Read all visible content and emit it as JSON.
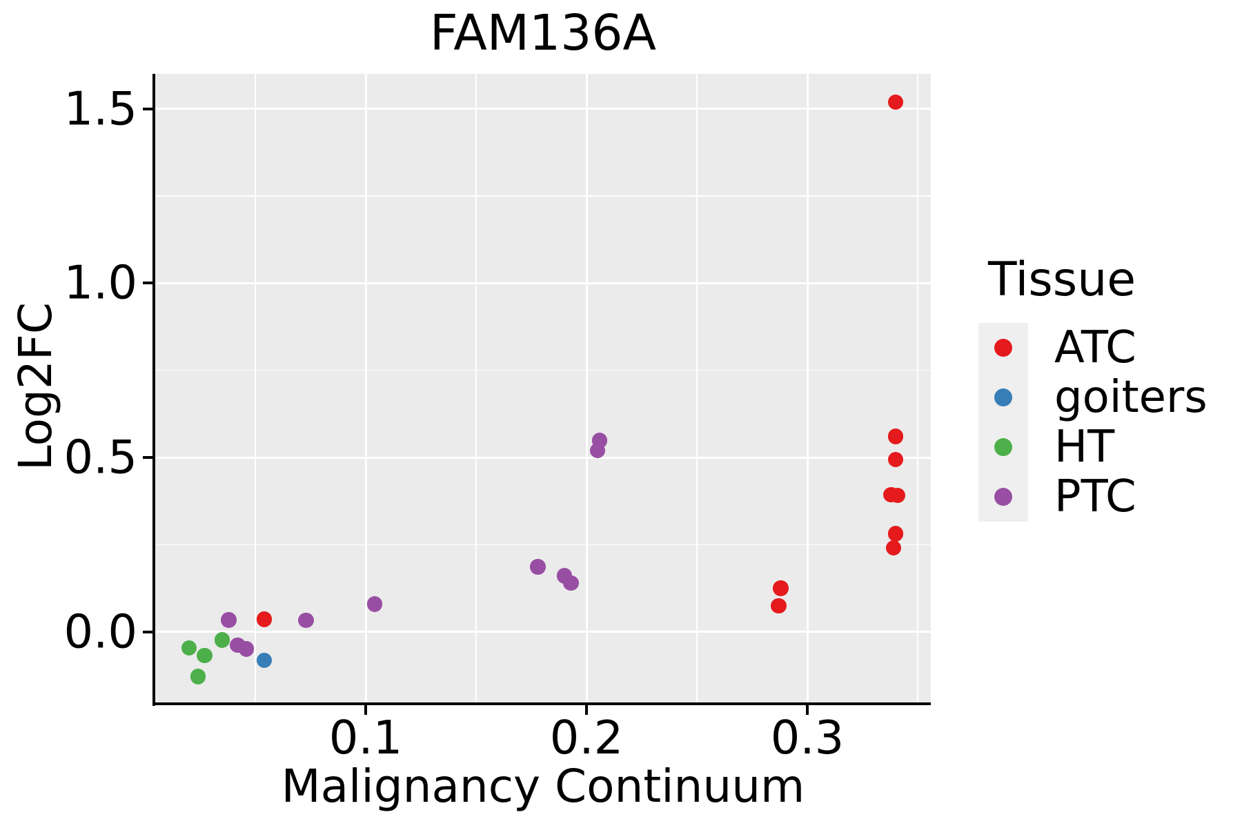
{
  "title": "FAM136A",
  "chart_data": {
    "type": "scatter",
    "title": "FAM136A",
    "xlabel": "Malignancy Continuum",
    "ylabel": "Log2FC",
    "xlim": [
      0.005,
      0.356
    ],
    "ylim": [
      -0.204,
      1.601
    ],
    "grid": "on",
    "x_ticks": [
      {
        "v": 0.1,
        "label": "0.1"
      },
      {
        "v": 0.2,
        "label": "0.2"
      },
      {
        "v": 0.3,
        "label": "0.3"
      }
    ],
    "y_ticks": [
      {
        "v": 0.0,
        "label": "0.0"
      },
      {
        "v": 0.5,
        "label": "0.5"
      },
      {
        "v": 1.0,
        "label": "1.0"
      },
      {
        "v": 1.5,
        "label": "1.5"
      }
    ],
    "x_minor_ticks": [
      0.05,
      0.15,
      0.25,
      0.35
    ],
    "y_minor_ticks": [
      0.25,
      0.75,
      1.25
    ],
    "legend_position": "right",
    "series": [
      {
        "name": "ATC",
        "color": "#E41A1C",
        "points": [
          [
            0.054,
            0.036
          ],
          [
            0.288,
            0.125
          ],
          [
            0.287,
            0.075
          ],
          [
            0.34,
            1.519
          ],
          [
            0.34,
            0.56
          ],
          [
            0.34,
            0.494
          ],
          [
            0.338,
            0.393
          ],
          [
            0.341,
            0.391
          ],
          [
            0.34,
            0.281
          ],
          [
            0.339,
            0.241
          ]
        ]
      },
      {
        "name": "goiters",
        "color": "#377EB8",
        "points": [
          [
            0.054,
            -0.082
          ]
        ]
      },
      {
        "name": "HT",
        "color": "#4DAF4A",
        "points": [
          [
            0.02,
            -0.046
          ],
          [
            0.027,
            -0.068
          ],
          [
            0.035,
            -0.023
          ],
          [
            0.024,
            -0.128
          ]
        ]
      },
      {
        "name": "PTC",
        "color": "#984EA3",
        "points": [
          [
            0.038,
            0.034
          ],
          [
            0.042,
            -0.038
          ],
          [
            0.046,
            -0.049
          ],
          [
            0.073,
            0.033
          ],
          [
            0.104,
            0.08
          ],
          [
            0.178,
            0.186
          ],
          [
            0.19,
            0.161
          ],
          [
            0.193,
            0.14
          ],
          [
            0.206,
            0.548
          ],
          [
            0.205,
            0.52
          ]
        ]
      }
    ]
  },
  "legend": {
    "title": "Tissue",
    "entries": [
      {
        "label": "ATC",
        "color": "#E41A1C"
      },
      {
        "label": "goiters",
        "color": "#377EB8"
      },
      {
        "label": "HT",
        "color": "#4DAF4A"
      },
      {
        "label": "PTC",
        "color": "#984EA3"
      }
    ]
  },
  "colors": {
    "panel_background": "#EBEBEB",
    "gridline": "#FFFFFF",
    "axis": "#000000",
    "legend_key_background": "#EFEFEF"
  }
}
